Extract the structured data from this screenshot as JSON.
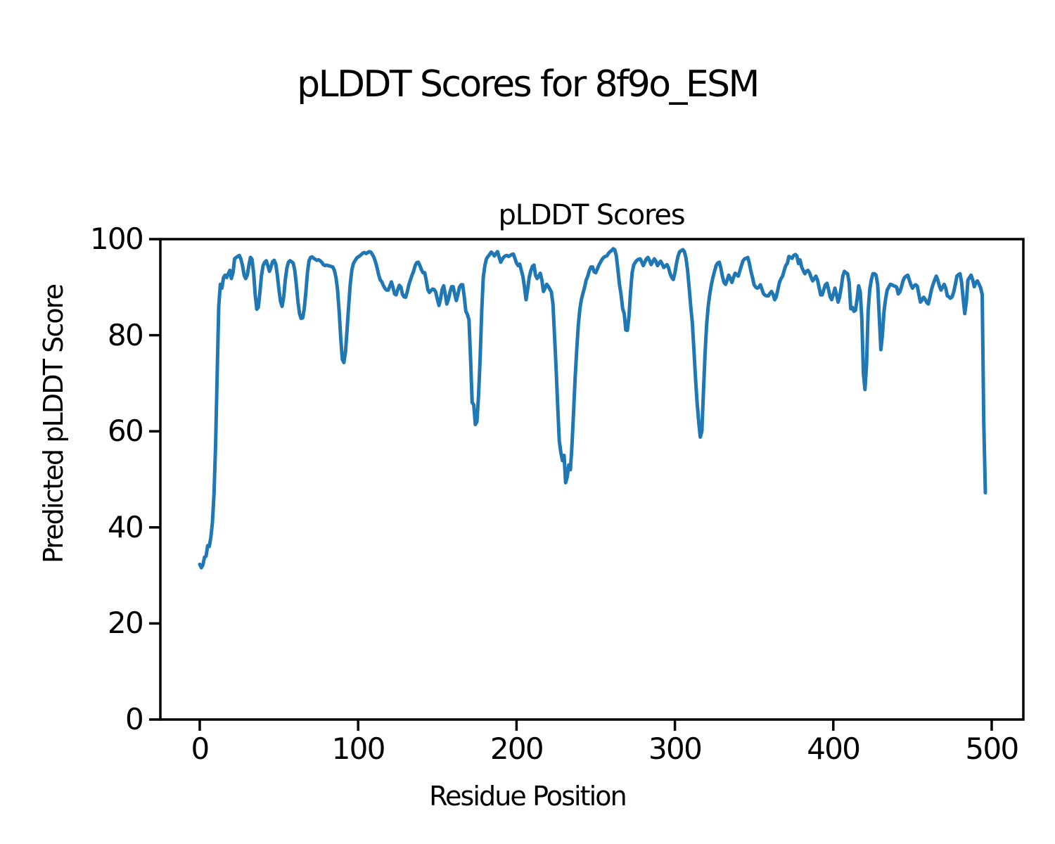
{
  "figure": {
    "suptitle": "pLDDT Scores for 8f9o_ESM",
    "axes_title": "pLDDT Scores",
    "xlabel": "Residue Position",
    "ylabel": "Predicted pLDDT Score"
  },
  "chart_data": {
    "type": "line",
    "title": "pLDDT Scores",
    "suptitle": "pLDDT Scores for 8f9o_ESM",
    "xlabel": "Residue Position",
    "ylabel": "Predicted pLDDT Score",
    "xlim": [
      -25,
      520
    ],
    "ylim": [
      0,
      100
    ],
    "x_ticks": [
      0,
      100,
      200,
      300,
      400,
      500
    ],
    "y_ticks": [
      0,
      20,
      40,
      60,
      80,
      100
    ],
    "grid": false,
    "legend": "none",
    "line_color": "#1f77b4",
    "x_start": 0,
    "x_step": 1,
    "series": [
      {
        "name": "pLDDT",
        "values": [
          32.3,
          31.6,
          32.2,
          33.8,
          34.0,
          36.2,
          36.0,
          37.9,
          41.0,
          47.0,
          57.0,
          72.0,
          86.0,
          90.6,
          89.8,
          92.0,
          92.5,
          92.0,
          92.8,
          93.5,
          91.8,
          93.0,
          95.9,
          96.2,
          96.4,
          96.6,
          95.8,
          94.5,
          92.5,
          91.8,
          92.5,
          94.5,
          96.2,
          95.8,
          93.0,
          88.5,
          85.4,
          85.8,
          89.0,
          92.5,
          94.5,
          95.2,
          95.5,
          94.5,
          93.3,
          94.2,
          95.3,
          95.6,
          94.8,
          92.5,
          89.5,
          87.0,
          86.0,
          88.0,
          91.5,
          94.0,
          95.2,
          95.5,
          95.3,
          95.0,
          93.5,
          90.5,
          87.0,
          84.5,
          83.5,
          83.6,
          85.5,
          89.0,
          93.0,
          95.5,
          96.2,
          96.3,
          96.0,
          95.8,
          95.6,
          95.7,
          95.5,
          95.2,
          94.7,
          94.5,
          94.6,
          94.5,
          94.4,
          94.3,
          94.2,
          93.5,
          92.0,
          89.5,
          85.0,
          79.5,
          75.0,
          74.3,
          76.5,
          81.0,
          86.0,
          90.5,
          93.5,
          94.9,
          95.5,
          96.0,
          96.3,
          96.5,
          96.8,
          97.1,
          97.2,
          97.0,
          97.2,
          97.4,
          97.3,
          96.8,
          96.2,
          95.2,
          94.0,
          92.5,
          91.5,
          91.1,
          90.3,
          89.7,
          89.4,
          89.4,
          90.2,
          91.1,
          90.0,
          88.6,
          88.4,
          89.5,
          90.4,
          90.0,
          88.5,
          88.0,
          87.9,
          89.0,
          90.5,
          91.5,
          92.5,
          93.3,
          94.5,
          95.1,
          95.2,
          94.5,
          93.6,
          93.0,
          93.0,
          91.5,
          89.5,
          88.9,
          89.3,
          89.6,
          89.5,
          89.0,
          87.5,
          86.2,
          87.5,
          89.5,
          90.3,
          88.5,
          86.5,
          87.5,
          89.0,
          90.1,
          90.1,
          88.5,
          87.2,
          88.5,
          90.0,
          90.5,
          90.5,
          88.0,
          85.0,
          84.3,
          83.2,
          75.0,
          66.0,
          65.5,
          61.4,
          62.0,
          67.5,
          75.0,
          85.0,
          92.0,
          94.5,
          95.9,
          96.4,
          96.8,
          97.3,
          97.0,
          96.5,
          97.0,
          97.4,
          96.3,
          95.2,
          95.8,
          96.3,
          96.5,
          96.6,
          96.4,
          96.6,
          96.8,
          96.9,
          96.0,
          95.0,
          94.5,
          94.8,
          93.5,
          92.3,
          90.0,
          87.4,
          89.5,
          92.0,
          93.4,
          94.3,
          94.6,
          92.5,
          91.8,
          92.3,
          92.9,
          91.5,
          89.1,
          89.8,
          90.6,
          90.2,
          89.6,
          89.0,
          86.5,
          80.0,
          73.0,
          65.0,
          58.0,
          55.5,
          53.9,
          55.0,
          49.3,
          50.5,
          53.0,
          52.0,
          57.0,
          64.0,
          71.0,
          77.0,
          82.0,
          85.5,
          87.5,
          88.8,
          90.0,
          91.5,
          92.3,
          93.5,
          94.2,
          94.2,
          93.2,
          93.0,
          93.8,
          94.6,
          95.2,
          95.8,
          96.2,
          96.4,
          96.5,
          97.0,
          97.4,
          97.6,
          98.0,
          97.8,
          96.5,
          93.7,
          90.5,
          88.5,
          85.5,
          84.5,
          81.1,
          81.0,
          84.0,
          89.0,
          93.0,
          94.6,
          95.2,
          95.6,
          95.8,
          95.9,
          95.3,
          94.5,
          95.2,
          95.9,
          96.2,
          95.5,
          94.7,
          95.3,
          95.9,
          95.4,
          94.5,
          95.0,
          95.4,
          94.8,
          94.1,
          94.4,
          94.7,
          94.0,
          92.8,
          92.0,
          91.6,
          93.0,
          95.0,
          96.5,
          97.4,
          97.6,
          97.8,
          97.4,
          96.0,
          93.5,
          89.8,
          86.0,
          82.5,
          77.0,
          71.0,
          66.0,
          62.0,
          58.8,
          60.0,
          68.0,
          76.0,
          82.0,
          86.0,
          88.5,
          90.5,
          92.0,
          93.3,
          94.5,
          95.0,
          95.2,
          94.0,
          92.2,
          91.0,
          90.6,
          91.5,
          92.5,
          91.8,
          91.0,
          92.0,
          92.9,
          92.6,
          92.3,
          93.4,
          94.5,
          95.5,
          95.9,
          96.0,
          96.2,
          95.0,
          93.3,
          92.0,
          90.5,
          90.0,
          89.8,
          90.0,
          90.5,
          89.5,
          88.6,
          88.3,
          88.2,
          88.2,
          88.7,
          89.1,
          88.5,
          87.4,
          88.0,
          89.5,
          91.0,
          91.8,
          92.3,
          93.5,
          94.5,
          95.0,
          96.4,
          96.2,
          96.0,
          96.6,
          96.8,
          96.5,
          94.9,
          95.7,
          94.2,
          93.5,
          92.8,
          93.3,
          93.5,
          93.0,
          92.0,
          91.3,
          91.8,
          92.3,
          91.5,
          90.0,
          88.4,
          88.4,
          89.5,
          90.5,
          90.8,
          89.5,
          88.0,
          87.4,
          88.5,
          89.8,
          88.5,
          86.9,
          88.0,
          90.0,
          92.3,
          93.3,
          93.0,
          92.8,
          91.0,
          85.5,
          85.8,
          85.0,
          85.2,
          87.5,
          90.3,
          89.0,
          83.5,
          72.0,
          68.7,
          74.0,
          85.0,
          89.5,
          91.5,
          92.8,
          92.8,
          92.5,
          90.5,
          84.0,
          77.0,
          80.0,
          85.0,
          87.5,
          89.4,
          90.0,
          90.6,
          90.5,
          90.3,
          90.2,
          90.0,
          88.6,
          89.0,
          90.0,
          91.3,
          92.0,
          92.3,
          92.5,
          91.5,
          90.5,
          89.8,
          90.3,
          90.5,
          90.2,
          88.5,
          86.9,
          87.3,
          87.9,
          87.5,
          86.8,
          86.5,
          88.0,
          89.5,
          90.6,
          91.5,
          92.3,
          91.5,
          90.2,
          89.4,
          90.0,
          90.6,
          89.8,
          88.2,
          88.0,
          87.7,
          88.0,
          89.0,
          90.5,
          92.3,
          92.6,
          92.8,
          91.0,
          87.5,
          84.5,
          87.0,
          91.5,
          92.0,
          92.5,
          91.5,
          90.1,
          91.0,
          91.3,
          90.6,
          89.9,
          88.5,
          62.0,
          47.2
        ]
      }
    ]
  }
}
